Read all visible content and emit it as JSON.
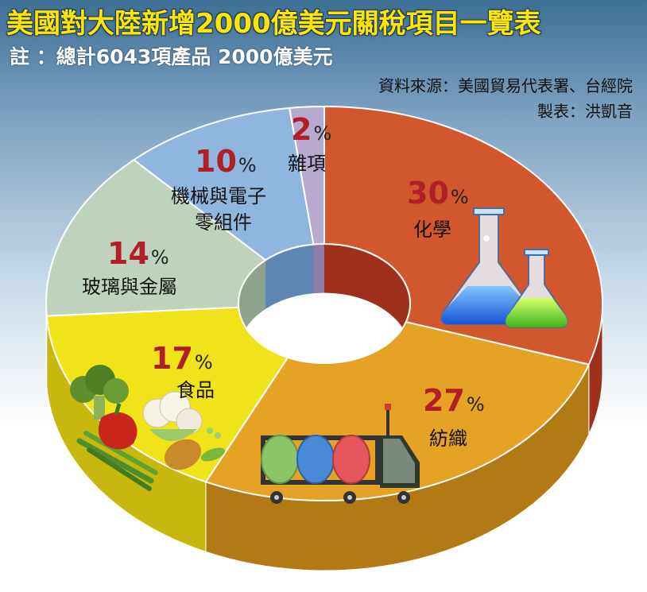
{
  "header": {
    "title": "美國對大陸新增2000億美元關稅項目一覽表",
    "note": "註 ：總計6043項產品  2000億美元",
    "source": "資料來源：美國貿易代表署、台經院",
    "maker": "製表：洪凱音"
  },
  "chart_data": {
    "type": "pie",
    "style": "3d-donut",
    "unit": "%",
    "categories": [
      "化學",
      "紡織",
      "食品",
      "玻璃與金屬",
      "機械與電子零組件",
      "雜項"
    ],
    "values": [
      30,
      27,
      17,
      14,
      10,
      2
    ],
    "labels": [
      {
        "pct": "30",
        "lines": [
          "化學"
        ]
      },
      {
        "pct": "27",
        "lines": [
          "紡織"
        ]
      },
      {
        "pct": "17",
        "lines": [
          "食品"
        ]
      },
      {
        "pct": "14",
        "lines": [
          "玻璃與金屬"
        ]
      },
      {
        "pct": "10",
        "lines": [
          "機械與電子",
          "零組件"
        ]
      },
      {
        "pct": "2",
        "lines": [
          "雜項"
        ]
      }
    ],
    "colors": [
      "#d3572c",
      "#e6a224",
      "#f1e319",
      "#bfd2bd",
      "#8fb6df",
      "#b7a9cf"
    ],
    "side_colors": [
      "#9e2f1a",
      "#b27a14",
      "#c8b80e",
      "#8ea38c",
      "#5d86b2",
      "#8c7ca8"
    ],
    "icons": [
      "flask-icon",
      "yarn-cart-icon",
      "vegetables-icon"
    ]
  }
}
